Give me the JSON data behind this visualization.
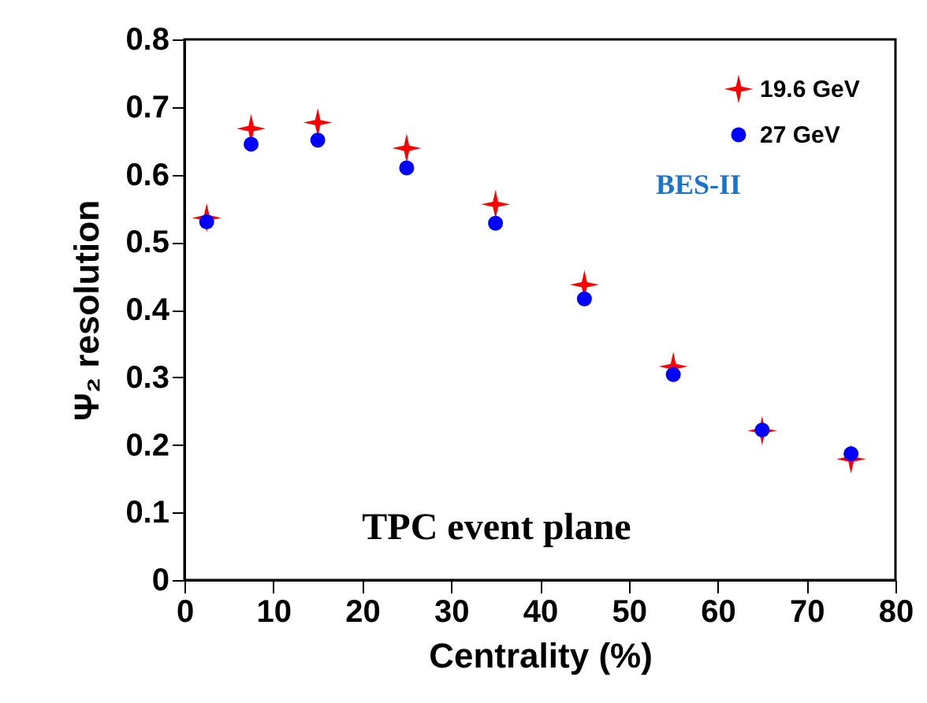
{
  "chart_data": {
    "type": "scatter",
    "xlabel": "Centrality (%)",
    "ylabel": "Ψ₂ resolution",
    "x": [
      2.5,
      7.5,
      15,
      25,
      35,
      45,
      55,
      65,
      75
    ],
    "series": [
      {
        "name": "19.6 GeV",
        "color": "#ff0000",
        "marker": "star",
        "values": [
          0.536,
          0.668,
          0.677,
          0.639,
          0.556,
          0.437,
          0.316,
          0.221,
          0.179
        ]
      },
      {
        "name": "27 GeV",
        "color": "#0000ff",
        "marker": "circle",
        "values": [
          0.53,
          0.645,
          0.651,
          0.61,
          0.528,
          0.416,
          0.304,
          0.222,
          0.187
        ]
      }
    ],
    "xlim": [
      0,
      80
    ],
    "xticks": [
      0,
      10,
      20,
      30,
      40,
      50,
      60,
      70,
      80
    ],
    "ylim": [
      0,
      0.8
    ],
    "yticks": [
      0,
      0.1,
      0.2,
      0.3,
      0.4,
      0.5,
      0.6,
      0.7,
      0.8
    ],
    "legend": "top right",
    "grid": false,
    "annotations": [
      "BES-II",
      "TPC event plane"
    ]
  }
}
